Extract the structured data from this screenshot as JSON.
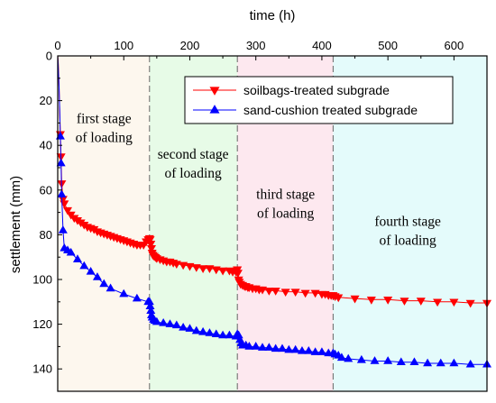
{
  "chart_data": {
    "type": "line",
    "xlabel": "time (h)",
    "ylabel": "settlement (mm)",
    "xlim": [
      0,
      650
    ],
    "ylim": [
      0,
      150
    ],
    "y_inverted": true,
    "x_axis_position": "top",
    "xticks": [
      0,
      100,
      200,
      300,
      400,
      500,
      600
    ],
    "yticks": [
      0,
      20,
      40,
      60,
      80,
      100,
      120,
      140
    ],
    "grid": false,
    "legend_position": "top-right",
    "stage_boundaries": [
      139,
      272,
      417
    ],
    "stages": [
      {
        "label_lines": [
          "first stage",
          "of loading"
        ],
        "x_start": 0,
        "x_end": 139,
        "color": "#fdf7ee",
        "label_x": 70,
        "label_y": 30
      },
      {
        "label_lines": [
          "second stage",
          "of loading"
        ],
        "x_start": 139,
        "x_end": 272,
        "color": "#e7fbe7",
        "label_x": 205,
        "label_y": 46
      },
      {
        "label_lines": [
          "third stage",
          "of loading"
        ],
        "x_start": 272,
        "x_end": 417,
        "color": "#fde8ef",
        "label_x": 345,
        "label_y": 64
      },
      {
        "label_lines": [
          "fourth stage",
          "of loading"
        ],
        "x_start": 417,
        "x_end": 650,
        "color": "#e4fbfb",
        "label_x": 530,
        "label_y": 76
      }
    ],
    "series": [
      {
        "name": "soilbags-treated subgrade",
        "color": "#ff0000",
        "marker": "triangle-down",
        "x": [
          0,
          0.5,
          1,
          2,
          3,
          4,
          5,
          6,
          8,
          10,
          15,
          20,
          25,
          30,
          35,
          40,
          45,
          50,
          55,
          60,
          65,
          70,
          75,
          80,
          85,
          90,
          95,
          100,
          105,
          110,
          115,
          120,
          125,
          130,
          134,
          137,
          139,
          140,
          141,
          142,
          143,
          144,
          146,
          148,
          150,
          155,
          160,
          165,
          170,
          175,
          180,
          190,
          200,
          210,
          220,
          230,
          240,
          250,
          260,
          265,
          270,
          271,
          272,
          273,
          274,
          275,
          277,
          280,
          283,
          285,
          288,
          290,
          295,
          300,
          305,
          310,
          320,
          330,
          345,
          360,
          375,
          390,
          400,
          405,
          410,
          414,
          417,
          420,
          425,
          450,
          475,
          500,
          525,
          550,
          575,
          600,
          625,
          650
        ],
        "y": [
          0,
          2,
          4,
          14,
          25,
          35,
          45,
          57,
          64,
          66,
          69,
          71,
          72.5,
          73.5,
          74.5,
          75.5,
          76.5,
          77,
          77.5,
          78.5,
          79,
          79.5,
          80,
          80.5,
          81,
          81.5,
          82,
          82.5,
          83,
          83.5,
          84,
          84.5,
          84.5,
          84.5,
          83,
          82,
          81.5,
          82,
          84,
          86,
          88,
          89,
          89.5,
          90,
          90.5,
          91,
          91.5,
          92,
          92,
          92.5,
          93,
          93.5,
          94,
          94.5,
          95,
          95,
          95.5,
          96,
          96,
          96.5,
          96.5,
          96,
          95.5,
          97,
          100,
          101,
          102,
          102.5,
          103,
          103,
          103.5,
          103.5,
          104,
          104,
          104.5,
          104.5,
          105,
          105,
          105.5,
          105.5,
          106,
          106,
          106.5,
          106.5,
          107,
          107,
          107,
          107.5,
          108,
          108.5,
          109,
          109,
          109.5,
          109.5,
          110,
          110,
          110.5,
          110.5
        ]
      },
      {
        "name": "sand-cushion treated subgrade",
        "color": "#0000ff",
        "marker": "triangle-up",
        "x": [
          0,
          0.5,
          1,
          2,
          3,
          4,
          5,
          6,
          8,
          10,
          15,
          20,
          30,
          40,
          50,
          60,
          70,
          80,
          100,
          120,
          137,
          139,
          140,
          141,
          142,
          143,
          145,
          147,
          150,
          160,
          170,
          180,
          190,
          200,
          210,
          220,
          230,
          240,
          250,
          260,
          270,
          272,
          274,
          276,
          278,
          280,
          285,
          290,
          300,
          310,
          320,
          330,
          340,
          350,
          360,
          370,
          380,
          390,
          400,
          410,
          417,
          420,
          425,
          430,
          440,
          460,
          480,
          500,
          520,
          540,
          560,
          580,
          600,
          625,
          650
        ],
        "y": [
          0,
          3,
          6,
          14,
          24,
          36,
          48,
          62,
          78,
          86,
          87,
          88,
          91,
          94,
          96.5,
          99,
          102,
          104,
          106.5,
          108.5,
          110,
          110,
          112,
          114,
          116,
          117,
          118,
          118.5,
          119,
          119.5,
          120,
          120.5,
          121.5,
          122,
          123,
          123.5,
          124,
          124.5,
          125,
          125,
          125.5,
          124.5,
          125,
          127,
          128.5,
          129.5,
          129.5,
          130,
          130,
          130.5,
          130.5,
          131,
          131,
          131.5,
          131.5,
          132,
          132,
          132.5,
          132.5,
          133,
          133,
          133.5,
          134,
          135,
          135.5,
          136,
          136.5,
          136.5,
          137,
          137,
          137.5,
          137.5,
          137.5,
          138,
          138
        ]
      }
    ]
  }
}
